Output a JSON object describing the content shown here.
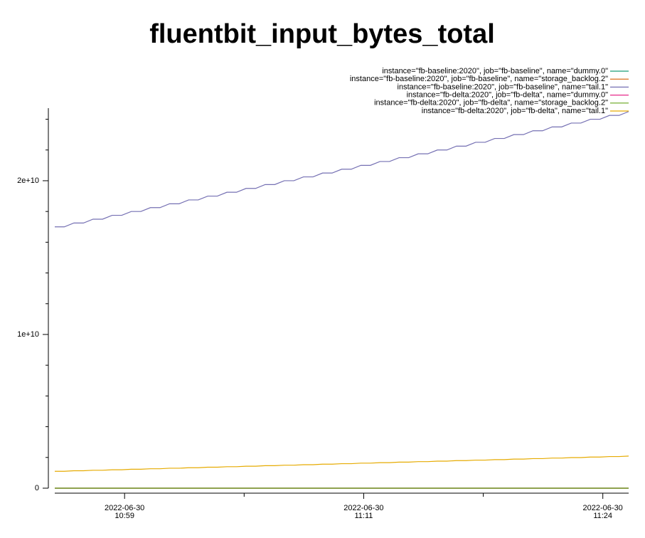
{
  "chart_data": {
    "type": "line",
    "title": "fluentbit_input_bytes_total",
    "legend": "top-right",
    "x": [
      655.1,
      655.6,
      656.1,
      656.6,
      657.1,
      657.6,
      658.1,
      658.6,
      659.1,
      659.6,
      660.1,
      660.6,
      661.1,
      661.6,
      662.1,
      662.6,
      663.1,
      663.6,
      664.1,
      664.6,
      665.1,
      665.6,
      666.1,
      666.6,
      667.1,
      667.6,
      668.1,
      668.6,
      669.1,
      669.6,
      670.1,
      670.6,
      671.1,
      671.6,
      672.1,
      672.6,
      673.1,
      673.6,
      674.1,
      674.6,
      675.1,
      675.6,
      676.1,
      676.6,
      677.1,
      677.6,
      678.1,
      678.6,
      679.1,
      679.6,
      680.1,
      680.6,
      681.1,
      681.6,
      682.1,
      682.6,
      683.1,
      683.6,
      684.1,
      684.6,
      685.1
    ],
    "xlim": [
      655.1,
      685.1
    ],
    "xticks": [
      {
        "value": 658.75,
        "label": "2022-06-30\n10:59"
      },
      {
        "value": 671.25,
        "label": "2022-06-30\n11:11"
      },
      {
        "value": 683.75,
        "label": "2022-06-30\n11:24"
      }
    ],
    "xminor_ticks": [
      665,
      677.5
    ],
    "ylim": [
      0,
      24720000000
    ],
    "yticks": [
      0,
      {
        "value": 10000000000,
        "label": "1e+10"
      },
      {
        "value": 20000000000,
        "label": "2e+10"
      }
    ],
    "yminor_ticks": [
      2000000000,
      4000000000,
      6000000000,
      8000000000,
      12000000000,
      14000000000,
      16000000000,
      18000000000,
      22000000000,
      24000000000
    ],
    "series": [
      {
        "name": "instance=\"fb-baseline:2020\", job=\"fb-baseline\", name=\"dummy.0\"",
        "color": "#1b9e77",
        "values": [
          0,
          0,
          0,
          0,
          0,
          0,
          0,
          0,
          0,
          0,
          0,
          0,
          0,
          0,
          0,
          0,
          0,
          0,
          0,
          0,
          0,
          0,
          0,
          0,
          0,
          0,
          0,
          0,
          0,
          0,
          0,
          0,
          0,
          0,
          0,
          0,
          0,
          0,
          0,
          0,
          0,
          0,
          0,
          0,
          0,
          0,
          0,
          0,
          0,
          0,
          0,
          0,
          0,
          0,
          0,
          0,
          0,
          0,
          0,
          0,
          0
        ]
      },
      {
        "name": "instance=\"fb-baseline:2020\", job=\"fb-baseline\", name=\"storage_backlog.2\"",
        "color": "#d95f02",
        "values": [
          0,
          0,
          0,
          0,
          0,
          0,
          0,
          0,
          0,
          0,
          0,
          0,
          0,
          0,
          0,
          0,
          0,
          0,
          0,
          0,
          0,
          0,
          0,
          0,
          0,
          0,
          0,
          0,
          0,
          0,
          0,
          0,
          0,
          0,
          0,
          0,
          0,
          0,
          0,
          0,
          0,
          0,
          0,
          0,
          0,
          0,
          0,
          0,
          0,
          0,
          0,
          0,
          0,
          0,
          0,
          0,
          0,
          0,
          0,
          0,
          0
        ]
      },
      {
        "name": "instance=\"fb-baseline:2020\", job=\"fb-baseline\", name=\"tail.1\"",
        "color": "#7570b3",
        "values": [
          17000000000,
          17000000000,
          17250000000,
          17250000000,
          17500000000,
          17500000000,
          17750000000,
          17750000000,
          18000000000,
          18000000000,
          18250000000,
          18250000000,
          18500000000,
          18500000000,
          18750000000,
          18750000000,
          19000000000,
          19000000000,
          19250000000,
          19250000000,
          19500000000,
          19500000000,
          19750000000,
          19750000000,
          20000000000,
          20000000000,
          20250000000,
          20250000000,
          20500000000,
          20500000000,
          20750000000,
          20750000000,
          21000000000,
          21000000000,
          21250000000,
          21250000000,
          21500000000,
          21500000000,
          21750000000,
          21750000000,
          22000000000,
          22000000000,
          22250000000,
          22250000000,
          22500000000,
          22500000000,
          22750000000,
          22750000000,
          23000000000,
          23000000000,
          23250000000,
          23250000000,
          23500000000,
          23500000000,
          23750000000,
          23750000000,
          24000000000,
          24000000000,
          24250000000,
          24250000000,
          24500000000
        ]
      },
      {
        "name": "instance=\"fb-delta:2020\", job=\"fb-delta\", name=\"dummy.0\"",
        "color": "#e7298a",
        "values": [
          0,
          0,
          0,
          0,
          0,
          0,
          0,
          0,
          0,
          0,
          0,
          0,
          0,
          0,
          0,
          0,
          0,
          0,
          0,
          0,
          0,
          0,
          0,
          0,
          0,
          0,
          0,
          0,
          0,
          0,
          0,
          0,
          0,
          0,
          0,
          0,
          0,
          0,
          0,
          0,
          0,
          0,
          0,
          0,
          0,
          0,
          0,
          0,
          0,
          0,
          0,
          0,
          0,
          0,
          0,
          0,
          0,
          0,
          0,
          0,
          0
        ]
      },
      {
        "name": "instance=\"fb-delta:2020\", job=\"fb-delta\", name=\"storage_backlog.2\"",
        "color": "#66a61e",
        "values": [
          0,
          0,
          0,
          0,
          0,
          0,
          0,
          0,
          0,
          0,
          0,
          0,
          0,
          0,
          0,
          0,
          0,
          0,
          0,
          0,
          0,
          0,
          0,
          0,
          0,
          0,
          0,
          0,
          0,
          0,
          0,
          0,
          0,
          0,
          0,
          0,
          0,
          0,
          0,
          0,
          0,
          0,
          0,
          0,
          0,
          0,
          0,
          0,
          0,
          0,
          0,
          0,
          0,
          0,
          0,
          0,
          0,
          0,
          0,
          0,
          0
        ]
      },
      {
        "name": "instance=\"fb-delta:2020\", job=\"fb-delta\", name=\"tail.1\"",
        "color": "#e6ab02",
        "values": [
          1100000000,
          1100000000,
          1133000000,
          1133000000,
          1166000000,
          1166000000,
          1199000000,
          1199000000,
          1232000000,
          1232000000,
          1265000000,
          1265000000,
          1298000000,
          1298000000,
          1331000000,
          1331000000,
          1364000000,
          1364000000,
          1397000000,
          1397000000,
          1430000000,
          1430000000,
          1463000000,
          1463000000,
          1496000000,
          1496000000,
          1529000000,
          1529000000,
          1562000000,
          1562000000,
          1595000000,
          1595000000,
          1628000000,
          1628000000,
          1661000000,
          1661000000,
          1694000000,
          1694000000,
          1727000000,
          1727000000,
          1760000000,
          1760000000,
          1793000000,
          1793000000,
          1826000000,
          1826000000,
          1859000000,
          1859000000,
          1892000000,
          1892000000,
          1925000000,
          1925000000,
          1958000000,
          1958000000,
          1991000000,
          1991000000,
          2024000000,
          2024000000,
          2057000000,
          2057000000,
          2090000000
        ]
      }
    ]
  }
}
